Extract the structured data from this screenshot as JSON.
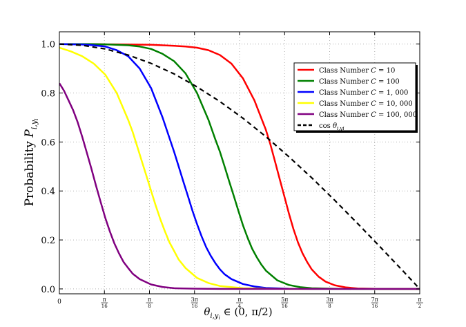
{
  "chart_data": {
    "type": "line",
    "xlabel_main": "θ",
    "xlabel_sub": "i,y",
    "xlabel_subsub": "i",
    "xlabel_rest": " ∈ (0, π/2)",
    "ylabel_main": "Probability ",
    "ylabel_var": "P",
    "ylabel_sub": "i,y",
    "ylabel_subsub": "i",
    "xlim": [
      0,
      1.5708
    ],
    "ylim": [
      -0.02,
      1.05
    ],
    "grid": true,
    "legend_position": "upper-right",
    "x_ticks": [
      {
        "value": 0,
        "label": "0"
      },
      {
        "value": 0.19635,
        "label": "π/16"
      },
      {
        "value": 0.3927,
        "label": "π/8"
      },
      {
        "value": 0.58905,
        "label": "3π/16"
      },
      {
        "value": 0.7854,
        "label": "π/4"
      },
      {
        "value": 0.98175,
        "label": "5π/16"
      },
      {
        "value": 1.1781,
        "label": "3π/8"
      },
      {
        "value": 1.37445,
        "label": "7π/16"
      },
      {
        "value": 1.5708,
        "label": "π/2"
      }
    ],
    "y_ticks": [
      {
        "value": 0.0,
        "label": "0.0"
      },
      {
        "value": 0.2,
        "label": "0.2"
      },
      {
        "value": 0.4,
        "label": "0.4"
      },
      {
        "value": 0.6,
        "label": "0.6"
      },
      {
        "value": 0.8,
        "label": "0.8"
      },
      {
        "value": 1.0,
        "label": "1.0"
      }
    ],
    "series": [
      {
        "name": "Class Number C = 10",
        "color": "#ff0000",
        "dash": "solid",
        "x": [
          0,
          0.1,
          0.2,
          0.3,
          0.4,
          0.5,
          0.55,
          0.6,
          0.65,
          0.7,
          0.75,
          0.8,
          0.85,
          0.9,
          0.92,
          0.94,
          0.96,
          0.98,
          1.0,
          1.02,
          1.04,
          1.06,
          1.08,
          1.1,
          1.13,
          1.16,
          1.2,
          1.25,
          1.3,
          1.4,
          1.5708
        ],
        "y": [
          1.0,
          1.0,
          0.999,
          0.998,
          0.997,
          0.993,
          0.99,
          0.985,
          0.975,
          0.955,
          0.92,
          0.86,
          0.77,
          0.65,
          0.59,
          0.52,
          0.45,
          0.38,
          0.31,
          0.245,
          0.19,
          0.145,
          0.11,
          0.08,
          0.05,
          0.03,
          0.015,
          0.006,
          0.002,
          0.0,
          0.0
        ]
      },
      {
        "name": "Class Number C = 100",
        "color": "#008000",
        "dash": "solid",
        "x": [
          0,
          0.1,
          0.2,
          0.3,
          0.35,
          0.4,
          0.45,
          0.5,
          0.55,
          0.6,
          0.65,
          0.68,
          0.7,
          0.72,
          0.74,
          0.76,
          0.78,
          0.8,
          0.82,
          0.84,
          0.86,
          0.88,
          0.9,
          0.95,
          1.0,
          1.05,
          1.1,
          1.2,
          1.3,
          1.5708
        ],
        "y": [
          1.0,
          1.0,
          0.999,
          0.995,
          0.99,
          0.98,
          0.96,
          0.93,
          0.88,
          0.8,
          0.69,
          0.61,
          0.56,
          0.5,
          0.44,
          0.38,
          0.32,
          0.26,
          0.21,
          0.165,
          0.13,
          0.1,
          0.075,
          0.035,
          0.016,
          0.007,
          0.003,
          0.001,
          0.0,
          0.0
        ]
      },
      {
        "name": "Class Number C = 1,000",
        "color": "#0000ff",
        "dash": "solid",
        "x": [
          0,
          0.1,
          0.15,
          0.2,
          0.25,
          0.3,
          0.35,
          0.4,
          0.45,
          0.5,
          0.52,
          0.54,
          0.56,
          0.58,
          0.6,
          0.62,
          0.64,
          0.66,
          0.68,
          0.7,
          0.72,
          0.75,
          0.8,
          0.85,
          0.9,
          1.0,
          1.1,
          1.2,
          1.5708
        ],
        "y": [
          1.0,
          0.998,
          0.995,
          0.99,
          0.975,
          0.95,
          0.9,
          0.82,
          0.7,
          0.56,
          0.5,
          0.44,
          0.38,
          0.32,
          0.265,
          0.215,
          0.17,
          0.135,
          0.105,
          0.08,
          0.06,
          0.04,
          0.02,
          0.01,
          0.004,
          0.001,
          0.0,
          0.0,
          0.0
        ]
      },
      {
        "name": "Class Number C = 10,000",
        "color": "#ffff00",
        "dash": "solid",
        "x": [
          0,
          0.05,
          0.1,
          0.15,
          0.2,
          0.25,
          0.3,
          0.32,
          0.34,
          0.36,
          0.38,
          0.4,
          0.42,
          0.44,
          0.46,
          0.48,
          0.5,
          0.52,
          0.55,
          0.6,
          0.65,
          0.7,
          0.8,
          0.9,
          1.0,
          1.2,
          1.5708
        ],
        "y": [
          0.985,
          0.97,
          0.95,
          0.92,
          0.875,
          0.8,
          0.69,
          0.64,
          0.58,
          0.52,
          0.46,
          0.4,
          0.34,
          0.285,
          0.235,
          0.19,
          0.155,
          0.12,
          0.085,
          0.045,
          0.024,
          0.012,
          0.003,
          0.001,
          0.0,
          0.0,
          0.0
        ]
      },
      {
        "name": "Class Number C = 100,000",
        "color": "#800080",
        "dash": "solid",
        "x": [
          0,
          0.02,
          0.04,
          0.06,
          0.08,
          0.1,
          0.12,
          0.14,
          0.16,
          0.18,
          0.2,
          0.22,
          0.24,
          0.26,
          0.28,
          0.3,
          0.32,
          0.35,
          0.4,
          0.45,
          0.5,
          0.6,
          0.7,
          0.8,
          1.0,
          1.5708
        ],
        "y": [
          0.84,
          0.81,
          0.77,
          0.73,
          0.68,
          0.62,
          0.555,
          0.49,
          0.42,
          0.355,
          0.29,
          0.235,
          0.185,
          0.145,
          0.11,
          0.085,
          0.062,
          0.04,
          0.018,
          0.008,
          0.003,
          0.001,
          0.0,
          0.0,
          0.0,
          0.0
        ]
      },
      {
        "name": "cos θ_{i,y_i}",
        "color": "#000000",
        "dash": "dashed",
        "x": [
          0,
          0.1,
          0.2,
          0.3,
          0.4,
          0.5,
          0.6,
          0.7,
          0.8,
          0.9,
          1.0,
          1.1,
          1.2,
          1.3,
          1.4,
          1.5,
          1.5708
        ],
        "y": [
          1.0,
          0.995,
          0.98,
          0.955,
          0.921,
          0.878,
          0.825,
          0.765,
          0.697,
          0.622,
          0.54,
          0.454,
          0.362,
          0.267,
          0.17,
          0.071,
          0.0
        ]
      }
    ],
    "legend": [
      {
        "prefix": "Class Number ",
        "var": "C",
        "rest": " = 10"
      },
      {
        "prefix": "Class Number ",
        "var": "C",
        "rest": " = 100"
      },
      {
        "prefix": "Class Number ",
        "var": "C",
        "rest": " = 1, 000"
      },
      {
        "prefix": "Class Number ",
        "var": "C",
        "rest": " = 10, 000"
      },
      {
        "prefix": "Class Number ",
        "var": "C",
        "rest": " = 100, 000"
      },
      {
        "prefix": "cos ",
        "var": "θ",
        "rest": "i,yi"
      }
    ]
  }
}
